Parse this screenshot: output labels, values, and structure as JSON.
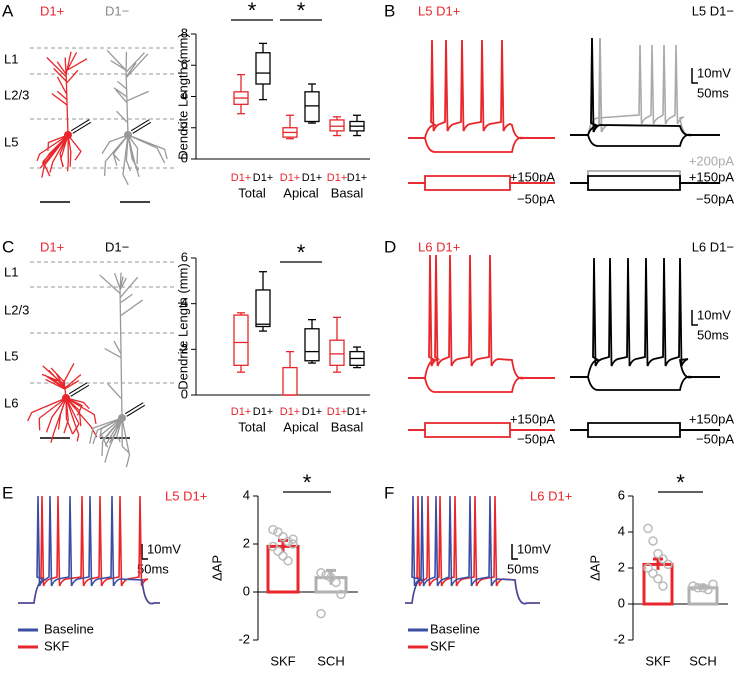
{
  "panels": {
    "A": {
      "letter": "A",
      "neuron_labels": [
        "D1+",
        "D1−"
      ],
      "layers": [
        "L1",
        "L2/3",
        "L5"
      ]
    },
    "B": {
      "letter": "B",
      "left_title": "L5 D1+",
      "right_title": "L5 D1−",
      "scale_v": "10mV",
      "scale_t": "50ms",
      "left_currents": [
        "+150pA",
        "−50pA"
      ],
      "right_currents": [
        "+200pA",
        "+150pA",
        "−50pA"
      ]
    },
    "C": {
      "letter": "C",
      "neuron_labels": [
        "D1+",
        "D1−"
      ],
      "layers": [
        "L1",
        "L2/3",
        "L5",
        "L6"
      ]
    },
    "D": {
      "letter": "D",
      "left_title": "L6 D1+",
      "right_title": "L6 D1−",
      "scale_v": "10mV",
      "scale_t": "50ms",
      "left_currents": [
        "+150pA",
        "−50pA"
      ],
      "right_currents": [
        "+150pA",
        "−50pA"
      ]
    },
    "E": {
      "letter": "E",
      "title": "L5 D1+",
      "scale_v": "10mV",
      "scale_t": "50ms",
      "legend": [
        {
          "name": "Baseline",
          "color": "#3b4ea3"
        },
        {
          "name": "SKF",
          "color": "#e8262b"
        }
      ]
    },
    "F": {
      "letter": "F",
      "title": "L6 D1+",
      "scale_v": "10mV",
      "scale_t": "50ms",
      "legend": [
        {
          "name": "Baseline",
          "color": "#3b4ea3"
        },
        {
          "name": "SKF",
          "color": "#e8262b"
        }
      ]
    }
  },
  "chart_data": [
    {
      "type": "box",
      "ylabel": "Dendrite Length (mm)",
      "ylim": [
        0,
        8
      ],
      "yticks": [
        0,
        2,
        4,
        6,
        8
      ],
      "groups": [
        "Total",
        "Apical",
        "Basal"
      ],
      "significance": [
        "*",
        "*",
        null
      ],
      "categories": [
        "D1+",
        "D1+",
        "D1+",
        "D1+",
        "D1+",
        "D1+"
      ],
      "box_colors": [
        "#e8262b",
        "#000000",
        "#e8262b",
        "#000000",
        "#e8262b",
        "#000000"
      ],
      "boxes": [
        {
          "min": 2.9,
          "q1": 3.5,
          "median": 3.9,
          "q3": 4.3,
          "max": 5.4
        },
        {
          "min": 3.8,
          "q1": 4.8,
          "median": 5.5,
          "q3": 6.8,
          "max": 7.4
        },
        {
          "min": 1.3,
          "q1": 1.4,
          "median": 1.7,
          "q3": 2.0,
          "max": 2.8
        },
        {
          "min": 2.3,
          "q1": 2.4,
          "median": 3.4,
          "q3": 4.3,
          "max": 4.8
        },
        {
          "min": 1.5,
          "q1": 1.8,
          "median": 2.1,
          "q3": 2.5,
          "max": 2.7
        },
        {
          "min": 1.5,
          "q1": 1.8,
          "median": 2.1,
          "q3": 2.4,
          "max": 2.8
        }
      ]
    },
    {
      "type": "box",
      "ylabel": "Dendrite Length (mm)",
      "ylim": [
        0,
        6
      ],
      "yticks": [
        0,
        2,
        4,
        6
      ],
      "groups": [
        "Total",
        "Apical",
        "Basal"
      ],
      "significance": [
        null,
        "*",
        null
      ],
      "categories": [
        "D1+",
        "D1+",
        "D1+",
        "D1+",
        "D1+",
        "D1+"
      ],
      "box_colors": [
        "#e8262b",
        "#000000",
        "#e8262b",
        "#000000",
        "#e8262b",
        "#000000"
      ],
      "boxes": [
        {
          "min": 1.0,
          "q1": 1.3,
          "median": 2.3,
          "q3": 3.5,
          "max": 3.6
        },
        {
          "min": 2.8,
          "q1": 3.0,
          "median": 3.1,
          "q3": 4.6,
          "max": 5.4
        },
        {
          "min": 0,
          "q1": 0,
          "median": 0,
          "q3": 1.2,
          "max": 1.9
        },
        {
          "min": 1.4,
          "q1": 1.5,
          "median": 1.9,
          "q3": 2.9,
          "max": 3.3
        },
        {
          "min": 1.0,
          "q1": 1.3,
          "median": 1.8,
          "q3": 2.4,
          "max": 3.4
        },
        {
          "min": 1.2,
          "q1": 1.3,
          "median": 1.6,
          "q3": 1.9,
          "max": 2.1
        }
      ]
    },
    {
      "type": "bar",
      "ylabel": "ΔAP",
      "ylim": [
        -2,
        4
      ],
      "yticks": [
        -2,
        0,
        2,
        4
      ],
      "significance": "*",
      "categories": [
        "SKF",
        "SCH"
      ],
      "values": [
        1.9,
        0.6
      ],
      "errors": [
        0.25,
        0.3
      ],
      "colors": [
        "#e8262b",
        "#b0b0b0"
      ],
      "points": [
        [
          2.6,
          2.5,
          2.3,
          2.1,
          2.0,
          1.9,
          1.7,
          1.5,
          1.3,
          2.2
        ],
        [
          0.8,
          0.7,
          0.6,
          0.4,
          -0.1,
          -0.9
        ]
      ]
    },
    {
      "type": "bar",
      "ylabel": "ΔAP",
      "ylim": [
        -2,
        6
      ],
      "yticks": [
        -2,
        0,
        2,
        4,
        6
      ],
      "significance": "*",
      "categories": [
        "SKF",
        "SCH"
      ],
      "values": [
        2.2,
        0.9
      ],
      "errors": [
        0.3,
        0.1
      ],
      "colors": [
        "#e8262b",
        "#b0b0b0"
      ],
      "points": [
        [
          4.2,
          3.5,
          2.8,
          2.5,
          2.2,
          2.0,
          1.7,
          1.4,
          1.0
        ],
        [
          1.0,
          0.9,
          0.9,
          0.8,
          1.1
        ]
      ]
    }
  ]
}
